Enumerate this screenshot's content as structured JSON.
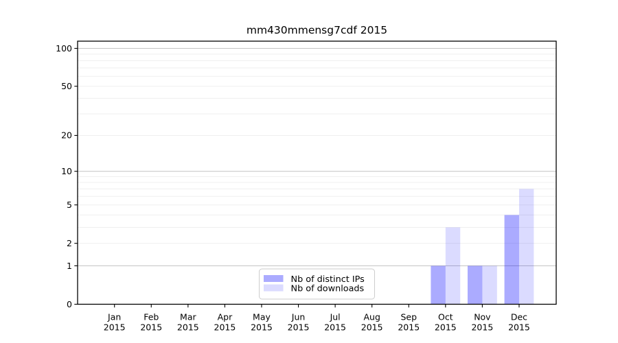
{
  "chart_data": {
    "type": "bar",
    "title": "mm430mmensg7cdf 2015",
    "x": {
      "categories": [
        "Jan",
        "Feb",
        "Mar",
        "Apr",
        "May",
        "Jun",
        "Jul",
        "Aug",
        "Sep",
        "Oct",
        "Nov",
        "Dec"
      ],
      "year": "2015"
    },
    "y_axis": {
      "scale": "log10(1+value)",
      "ticks": [
        0,
        1,
        2,
        5,
        10,
        20,
        50,
        100
      ],
      "range": [
        0,
        115
      ],
      "major_gridlines": [
        1,
        10,
        100
      ],
      "minor_gridlines": [
        2,
        3,
        4,
        5,
        6,
        7,
        8,
        9,
        20,
        30,
        40,
        50,
        60,
        70,
        80,
        90
      ]
    },
    "series": [
      {
        "name": "Nb of distinct IPs",
        "color": "#0000ff",
        "alpha": 0.33,
        "color_on_white": "#aaaaff",
        "values": [
          0,
          0,
          0,
          0,
          0,
          0,
          0,
          0,
          0,
          1,
          1,
          4
        ]
      },
      {
        "name": "Nb of downloads",
        "color": "#0000ff",
        "alpha": 0.14,
        "color_on_white": "#dbdbff",
        "values": [
          0,
          0,
          0,
          0,
          0,
          0,
          0,
          0,
          0,
          3,
          1,
          7
        ]
      }
    ],
    "legend": {
      "position": "bottom-center",
      "entries": [
        "Nb of distinct IPs",
        "Nb of downloads"
      ]
    },
    "grid": "horizontal",
    "colors": {
      "major_gridline": "#c4c4c4",
      "minor_gridline": "#efefef",
      "axis": "#000000",
      "legend_border": "#cccccc",
      "background": "#ffffff"
    }
  }
}
